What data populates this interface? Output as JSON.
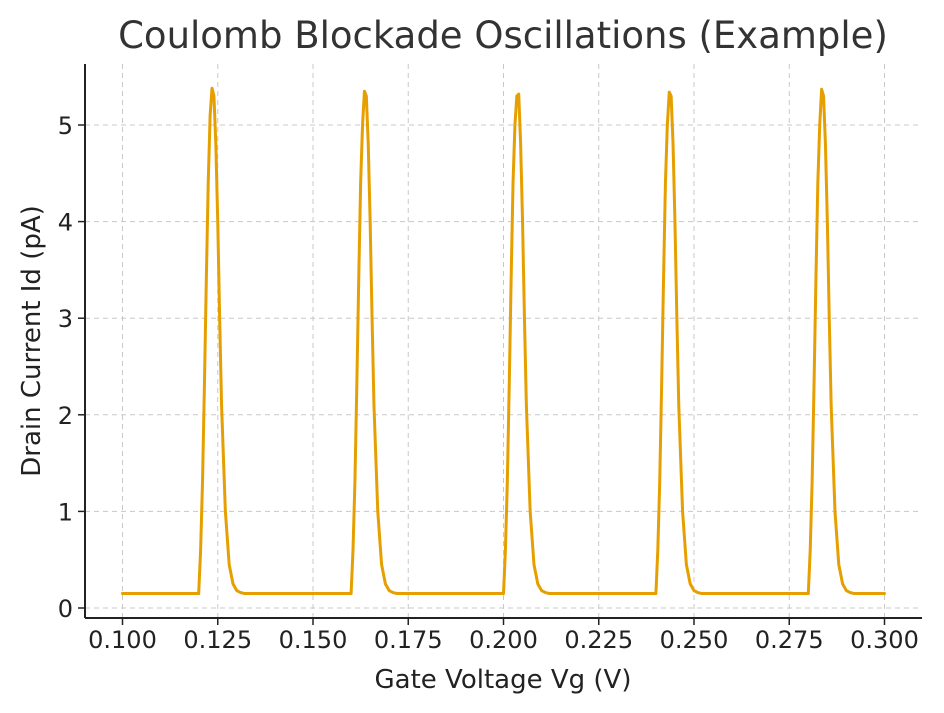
{
  "chart_data": {
    "type": "line",
    "title": "Coulomb Blockade Oscillations (Example)",
    "xlabel": "Gate Voltage Vg (V)",
    "ylabel": "Drain Current Id (pA)",
    "xlim": [
      0.1,
      0.3
    ],
    "ylim": [
      0,
      5.6
    ],
    "xticks": [
      "0.100",
      "0.125",
      "0.150",
      "0.175",
      "0.200",
      "0.225",
      "0.250",
      "0.275",
      "0.300"
    ],
    "yticks": [
      "0",
      "1",
      "2",
      "3",
      "4",
      "5"
    ],
    "grid": true,
    "series": [
      {
        "color": "#E69F00",
        "baseline": 0.15,
        "x": [
          0.1,
          0.12,
          0.1205,
          0.121,
          0.1215,
          0.122,
          0.1225,
          0.123,
          0.1235,
          0.124,
          0.1245,
          0.125,
          0.1255,
          0.126,
          0.127,
          0.128,
          0.129,
          0.13,
          0.131,
          0.132,
          0.16,
          0.1605,
          0.161,
          0.1615,
          0.162,
          0.1625,
          0.163,
          0.1635,
          0.164,
          0.1645,
          0.165,
          0.1655,
          0.166,
          0.167,
          0.168,
          0.169,
          0.17,
          0.171,
          0.172,
          0.2,
          0.2005,
          0.201,
          0.2015,
          0.202,
          0.2025,
          0.203,
          0.2035,
          0.204,
          0.2045,
          0.205,
          0.2055,
          0.206,
          0.207,
          0.208,
          0.209,
          0.21,
          0.211,
          0.212,
          0.24,
          0.2405,
          0.241,
          0.2415,
          0.242,
          0.2425,
          0.243,
          0.2435,
          0.244,
          0.2445,
          0.245,
          0.2455,
          0.246,
          0.247,
          0.248,
          0.249,
          0.25,
          0.251,
          0.252,
          0.28,
          0.2805,
          0.281,
          0.2815,
          0.282,
          0.2825,
          0.283,
          0.2835,
          0.284,
          0.2845,
          0.285,
          0.2855,
          0.286,
          0.287,
          0.288,
          0.289,
          0.29,
          0.291,
          0.292,
          0.3
        ],
        "y": [
          0.15,
          0.15,
          0.6,
          1.3,
          2.3,
          3.4,
          4.4,
          5.1,
          5.38,
          5.3,
          4.8,
          4.0,
          3.0,
          2.1,
          1.0,
          0.45,
          0.25,
          0.18,
          0.16,
          0.15,
          0.15,
          0.6,
          1.3,
          2.3,
          3.4,
          4.4,
          5.0,
          5.35,
          5.3,
          4.8,
          4.0,
          3.0,
          2.1,
          1.0,
          0.45,
          0.25,
          0.18,
          0.16,
          0.15,
          0.15,
          0.6,
          1.3,
          2.3,
          3.4,
          4.4,
          5.0,
          5.3,
          5.32,
          4.8,
          4.0,
          3.0,
          2.1,
          1.0,
          0.45,
          0.25,
          0.18,
          0.16,
          0.15,
          0.15,
          0.6,
          1.3,
          2.3,
          3.4,
          4.4,
          5.0,
          5.34,
          5.3,
          4.8,
          4.0,
          3.0,
          2.1,
          1.0,
          0.45,
          0.25,
          0.18,
          0.16,
          0.15,
          0.15,
          0.6,
          1.3,
          2.3,
          3.4,
          4.4,
          5.0,
          5.37,
          5.3,
          4.8,
          4.0,
          3.0,
          2.1,
          1.0,
          0.45,
          0.25,
          0.18,
          0.16,
          0.15,
          0.15
        ]
      }
    ]
  }
}
